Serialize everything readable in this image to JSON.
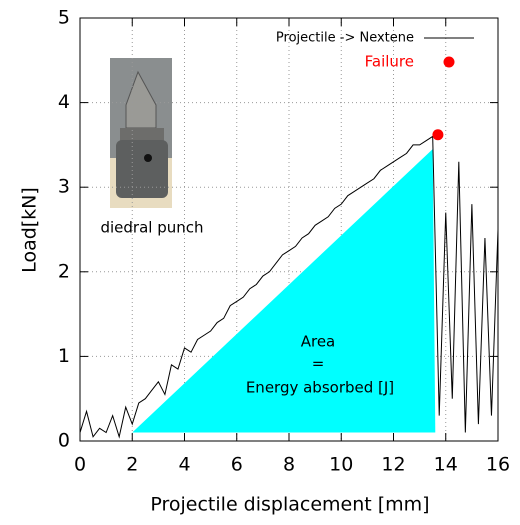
{
  "chart_data": {
    "type": "line",
    "xlabel": "Projectile displacement [mm]",
    "ylabel": "Load[kN]",
    "x": [
      0,
      0.25,
      0.5,
      0.75,
      1,
      1.25,
      1.5,
      1.75,
      2,
      2.25,
      2.5,
      2.75,
      3,
      3.25,
      3.5,
      3.75,
      4,
      4.25,
      4.5,
      4.75,
      5,
      5.25,
      5.5,
      5.75,
      6,
      6.25,
      6.5,
      6.75,
      7,
      7.25,
      7.5,
      7.75,
      8,
      8.25,
      8.5,
      8.75,
      9,
      9.25,
      9.5,
      9.75,
      10,
      10.25,
      10.5,
      10.75,
      11,
      11.25,
      11.5,
      11.75,
      12,
      12.25,
      12.5,
      12.75,
      13,
      13.25,
      13.5,
      13.75,
      14,
      14.25,
      14.5,
      14.75,
      15,
      15.25,
      15.5,
      15.75,
      16
    ],
    "series": [
      {
        "name": "Projectile -> Nextene",
        "color": "#000000",
        "values": [
          0.1,
          0.35,
          0.05,
          0.15,
          0.1,
          0.3,
          0.05,
          0.4,
          0.2,
          0.45,
          0.5,
          0.6,
          0.7,
          0.55,
          0.9,
          0.85,
          1.1,
          1.05,
          1.2,
          1.25,
          1.3,
          1.4,
          1.45,
          1.6,
          1.65,
          1.7,
          1.8,
          1.85,
          1.95,
          2.0,
          2.1,
          2.2,
          2.25,
          2.3,
          2.4,
          2.45,
          2.55,
          2.6,
          2.65,
          2.75,
          2.8,
          2.9,
          2.95,
          3.0,
          3.05,
          3.1,
          3.2,
          3.25,
          3.3,
          3.35,
          3.4,
          3.5,
          3.5,
          3.55,
          3.6,
          0.3,
          2.7,
          0.5,
          3.3,
          0.1,
          2.8,
          0.2,
          2.4,
          0.3,
          2.5
        ]
      }
    ],
    "failure": {
      "name": "Failure",
      "color": "#ff0000",
      "x": 13.7,
      "y": 3.62
    },
    "area": {
      "color": "#00ffff",
      "x": [
        2,
        13.5,
        13.6
      ],
      "y": [
        0.1,
        3.45,
        0.1
      ]
    },
    "annotations": [
      "Area",
      "=",
      "Energy absorbed [J]",
      "diedral punch"
    ],
    "xlim": [
      0,
      16
    ],
    "ylim": [
      0,
      5
    ],
    "xticks": [
      0,
      2,
      4,
      6,
      8,
      10,
      12,
      14,
      16
    ],
    "yticks": [
      0,
      1,
      2,
      3,
      4,
      5
    ],
    "grid": true,
    "legend": "upper right"
  }
}
